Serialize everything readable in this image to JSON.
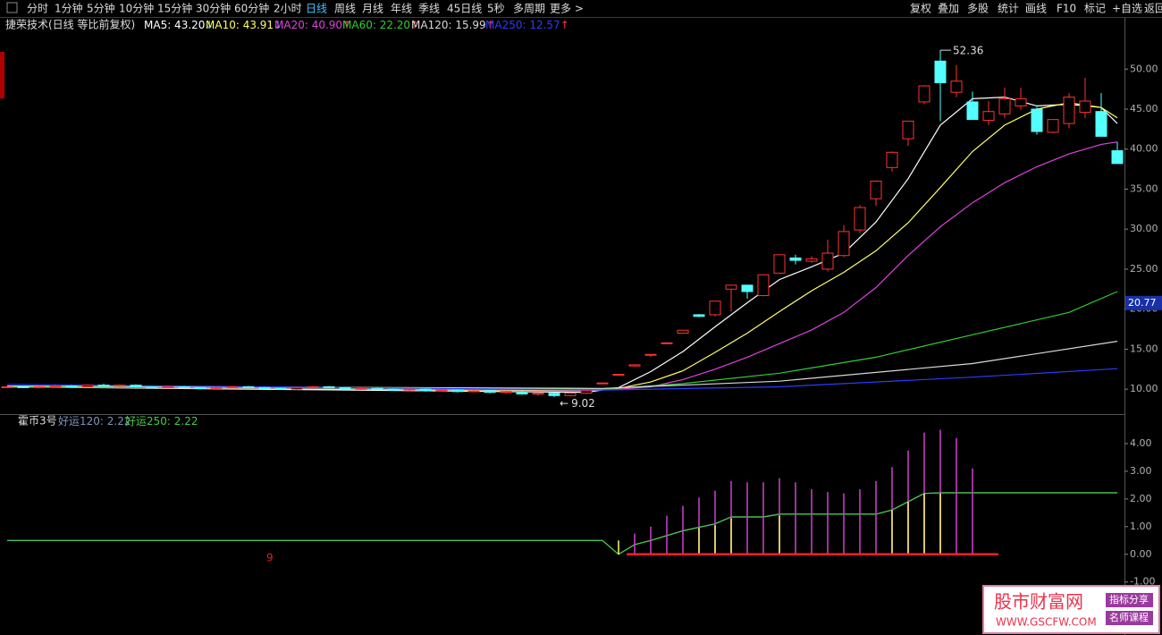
{
  "toolbar": {
    "periods": [
      "分时",
      "1分钟",
      "5分钟",
      "10分钟",
      "15分钟",
      "30分钟",
      "60分钟",
      "2小时",
      "日线",
      "周线",
      "月线",
      "年线",
      "季线",
      "45日线",
      "5秒",
      "多周期",
      "更多 >"
    ],
    "active": "日线",
    "tools": [
      "复权",
      "叠加",
      "多股",
      "统计",
      "画线",
      "F10",
      "标记",
      "+自选",
      "返回"
    ]
  },
  "chart_data": [
    {
      "type": "candlestick",
      "title": "捷荣技术(日线 等比前复权)",
      "up_color": "#ff3232",
      "down_color": "#54ffff",
      "ylim": [
        7,
        56.4
      ],
      "yticks": [
        {
          "value": 10,
          "label": "10.00"
        },
        {
          "value": 15,
          "label": "15.00"
        },
        {
          "value": 20,
          "label": "20.00"
        },
        {
          "value": 25,
          "label": "25.00"
        },
        {
          "value": 30,
          "label": "30.00"
        },
        {
          "value": 35,
          "label": "35.00"
        },
        {
          "value": 40,
          "label": "40.00"
        },
        {
          "value": 45,
          "label": "45.00"
        },
        {
          "value": 50,
          "label": "50.00"
        }
      ],
      "open": [
        10.2,
        10.3,
        10.2,
        10.3,
        10.4,
        10.3,
        10.5,
        10.4,
        10.5,
        10.3,
        10.2,
        10.3,
        10.2,
        10.1,
        10.2,
        10.3,
        10.2,
        10.1,
        10.0,
        10.2,
        10.3,
        10.2,
        10.0,
        10.1,
        10.0,
        9.9,
        10.0,
        9.8,
        9.9,
        9.7,
        9.8,
        9.6,
        9.7,
        9.4,
        9.5,
        9.2,
        9.5,
        10.78,
        11.86,
        12.9,
        14.35,
        15.79,
        17.0,
        19.3,
        19.3,
        22.5,
        23.0,
        21.7,
        24.5,
        26.4,
        26.0,
        25.0,
        26.7,
        29.9,
        33.8,
        37.7,
        41.3,
        45.9,
        51.0,
        47.1,
        45.9,
        43.6,
        44.4,
        45.4,
        45.0,
        42.1,
        43.2,
        44.6,
        44.7,
        39.8
      ],
      "high": [
        10.4,
        10.4,
        10.4,
        10.5,
        10.5,
        10.6,
        10.7,
        10.6,
        10.6,
        10.4,
        10.4,
        10.4,
        10.3,
        10.3,
        10.4,
        10.4,
        10.3,
        10.2,
        10.3,
        10.4,
        10.4,
        10.3,
        10.2,
        10.2,
        10.1,
        10.1,
        10.1,
        10.0,
        10.0,
        9.9,
        9.9,
        9.8,
        9.8,
        9.6,
        9.6,
        9.6,
        9.9,
        10.78,
        11.86,
        13.05,
        14.35,
        15.79,
        17.37,
        19.4,
        21.0,
        23.0,
        23.0,
        24.4,
        26.8,
        26.8,
        26.6,
        28.7,
        30.5,
        33.0,
        36.1,
        39.7,
        43.5,
        48.0,
        52.36,
        50.5,
        47.2,
        46.0,
        47.7,
        47.7,
        45.3,
        43.7,
        47.0,
        48.9,
        47.0,
        40.9
      ],
      "low": [
        10.1,
        10.2,
        10.1,
        10.2,
        10.2,
        10.2,
        10.3,
        10.3,
        10.2,
        10.1,
        10.1,
        10.1,
        10.0,
        10.0,
        10.1,
        10.1,
        10.0,
        9.9,
        9.9,
        10.1,
        10.1,
        10.0,
        9.9,
        9.9,
        9.8,
        9.8,
        9.7,
        9.7,
        9.6,
        9.6,
        9.5,
        9.4,
        9.3,
        9.2,
        9.02,
        9.1,
        9.4,
        10.78,
        11.86,
        12.8,
        14.0,
        15.79,
        17.0,
        19.0,
        19.1,
        19.7,
        21.3,
        21.6,
        24.5,
        25.6,
        25.8,
        24.7,
        26.5,
        29.5,
        32.9,
        37.2,
        40.4,
        45.6,
        43.5,
        46.5,
        43.7,
        43.0,
        43.9,
        44.9,
        41.8,
        42.0,
        42.6,
        43.9,
        41.6,
        38.2
      ],
      "close": [
        10.3,
        10.2,
        10.3,
        10.4,
        10.3,
        10.5,
        10.4,
        10.5,
        10.3,
        10.2,
        10.3,
        10.2,
        10.1,
        10.2,
        10.3,
        10.2,
        10.1,
        10.0,
        10.2,
        10.3,
        10.2,
        10.0,
        10.1,
        10.0,
        9.9,
        10.0,
        9.8,
        9.9,
        9.7,
        9.8,
        9.6,
        9.7,
        9.4,
        9.5,
        9.2,
        9.5,
        9.8,
        10.78,
        11.86,
        13.05,
        14.35,
        15.79,
        17.37,
        19.1,
        21.0,
        23.0,
        22.2,
        24.3,
        26.8,
        26.1,
        26.3,
        27.0,
        29.7,
        32.7,
        36.0,
        39.6,
        43.5,
        47.9,
        48.3,
        48.5,
        43.7,
        44.7,
        46.3,
        46.3,
        42.2,
        43.7,
        46.5,
        46.0,
        41.6,
        38.2
      ],
      "series": [
        {
          "name": "MA5",
          "legend": "MA5: 43.20",
          "trend": "↓",
          "color": "#ffffff",
          "x": [
            0,
            36,
            38,
            40,
            42,
            44,
            46,
            48,
            50,
            52,
            54,
            56,
            58,
            60,
            62,
            64,
            66,
            68,
            69
          ],
          "values": [
            10.3,
            9.6,
            10.2,
            12.2,
            14.7,
            17.8,
            20.8,
            23.7,
            25.3,
            27.0,
            30.9,
            36.3,
            43.0,
            46.3,
            46.5,
            45.4,
            45.6,
            45.2,
            43.2
          ]
        },
        {
          "name": "MA10",
          "legend": "MA10: 43.91",
          "trend": "↓",
          "color": "#ffff66",
          "x": [
            0,
            36,
            38,
            40,
            42,
            44,
            46,
            48,
            50,
            52,
            54,
            56,
            58,
            60,
            62,
            64,
            66,
            68,
            69
          ],
          "values": [
            10.3,
            9.8,
            10.1,
            10.9,
            12.3,
            14.6,
            17.0,
            19.7,
            22.3,
            24.6,
            27.3,
            30.8,
            35.2,
            39.7,
            43.0,
            45.0,
            45.8,
            45.2,
            43.91
          ]
        },
        {
          "name": "MA20",
          "legend": "MA20: 40.90",
          "trend": "↑",
          "color": "#e040e0",
          "x": [
            0,
            36,
            38,
            40,
            42,
            44,
            46,
            48,
            50,
            52,
            54,
            56,
            58,
            60,
            62,
            64,
            66,
            68,
            69
          ],
          "values": [
            10.3,
            9.9,
            10.0,
            10.3,
            11.2,
            12.5,
            14.0,
            15.7,
            17.4,
            19.6,
            22.7,
            26.7,
            30.3,
            33.3,
            35.8,
            37.8,
            39.4,
            40.6,
            40.9
          ]
        },
        {
          "name": "MA60",
          "legend": "MA60: 22.20",
          "trend": "↑",
          "color": "#33cc33",
          "x": [
            0,
            37,
            42,
            48,
            54,
            60,
            66,
            69
          ],
          "values": [
            10.3,
            10.0,
            10.7,
            12.0,
            14.0,
            16.8,
            19.6,
            22.2
          ]
        },
        {
          "name": "MA120",
          "legend": "MA120: 15.99",
          "trend": "↑",
          "color": "#d8d8d8",
          "x": [
            0,
            37,
            48,
            60,
            69
          ],
          "values": [
            10.4,
            10.1,
            11.0,
            13.2,
            15.99
          ]
        },
        {
          "name": "MA250",
          "legend": "MA250: 12.57",
          "trend": "↑",
          "color": "#2a3cff",
          "x": [
            0,
            37,
            48,
            60,
            69
          ],
          "values": [
            10.6,
            9.9,
            10.3,
            11.5,
            12.57
          ]
        }
      ],
      "max_label": 52.36,
      "min_label": 9.02,
      "min_arrow": "←",
      "last_price": 20.77
    },
    {
      "type": "indicator",
      "title": "霍币3号",
      "ylim": [
        -1.3,
        5.0
      ],
      "yticks": [
        {
          "value": -1,
          "label": "-1.00"
        },
        {
          "value": 0,
          "label": "0.00"
        },
        {
          "value": 1,
          "label": "1.00"
        },
        {
          "value": 2,
          "label": "2.00"
        },
        {
          "value": 3,
          "label": "3.00"
        },
        {
          "value": 4,
          "label": "4.00"
        }
      ],
      "series": [
        {
          "name": "好运120",
          "legend": "好运120: 2.22",
          "color": "#7f93c0",
          "style": "line",
          "x": [
            0,
            37,
            38,
            39,
            40,
            42,
            44,
            45,
            47,
            48,
            54,
            55,
            57,
            58,
            69
          ],
          "values": [
            0.5,
            0.5,
            0.0,
            0.35,
            0.5,
            0.85,
            1.1,
            1.35,
            1.35,
            1.45,
            1.45,
            1.6,
            2.2,
            2.22,
            2.22
          ]
        },
        {
          "name": "好运250",
          "legend": "好运250: 2.22",
          "color": "#44cc44",
          "style": "line",
          "x": [
            0,
            37,
            38,
            39,
            40,
            42,
            44,
            45,
            47,
            48,
            54,
            55,
            57,
            58,
            69
          ],
          "values": [
            0.5,
            0.5,
            0.0,
            0.35,
            0.5,
            0.85,
            1.1,
            1.35,
            1.35,
            1.45,
            1.45,
            1.6,
            2.2,
            2.22,
            2.22
          ]
        },
        {
          "color": "#d040d0",
          "style": "stick",
          "x": [
            39,
            40,
            41,
            42,
            43,
            44,
            45,
            46,
            47,
            48,
            49,
            50,
            51,
            52,
            53,
            54,
            55,
            56,
            57,
            58,
            59,
            60
          ],
          "values": [
            0.75,
            1.0,
            1.4,
            1.75,
            2.05,
            2.3,
            2.65,
            2.6,
            2.6,
            2.75,
            2.6,
            2.35,
            2.25,
            2.2,
            2.35,
            2.65,
            3.15,
            3.75,
            4.4,
            4.5,
            4.2,
            3.1
          ]
        },
        {
          "color": "#ffff66",
          "style": "stick",
          "x": [
            38,
            43,
            44,
            45,
            48,
            55,
            56,
            57,
            58
          ],
          "values": [
            0.5,
            0.95,
            1.05,
            1.3,
            1.4,
            1.6,
            1.9,
            2.2,
            2.2
          ]
        },
        {
          "color": "#ff2020",
          "style": "thick",
          "x": [
            38.5,
            61.6
          ],
          "values": [
            0,
            0
          ]
        }
      ],
      "annotation": "9"
    }
  ],
  "watermark": {
    "name": "股市财富网",
    "url": "WWW.GSCFW.COM",
    "tags": [
      "指标分享",
      "名师课程"
    ]
  }
}
